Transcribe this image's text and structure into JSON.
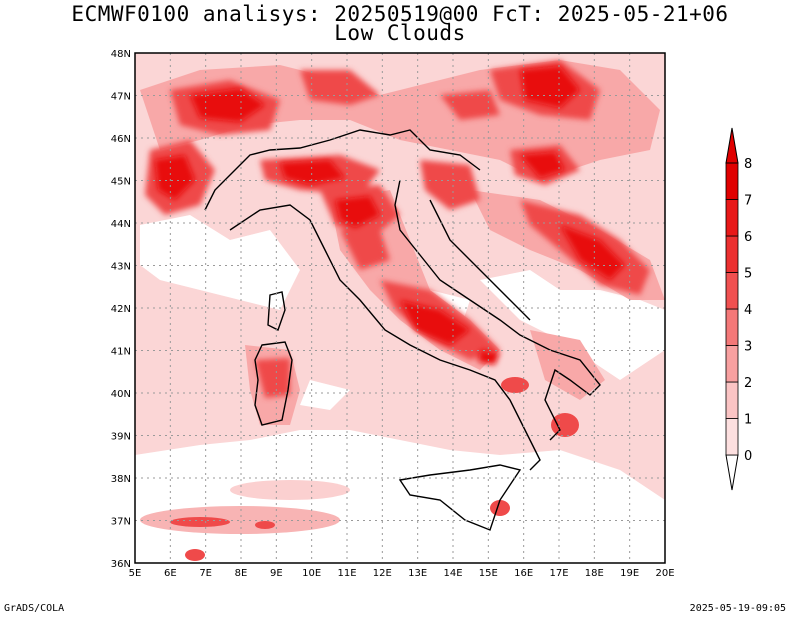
{
  "title_line1": "ECMWF0100 analisys: 20250519@00 FcT: 2025-05-21+06",
  "title_line2": "Low Clouds",
  "footer_left": "GrADS/COLA",
  "footer_right": "2025-05-19-09:05",
  "map": {
    "lon_range": [
      5,
      20
    ],
    "lat_range": [
      36,
      48
    ],
    "lon_labels": [
      "5E",
      "6E",
      "7E",
      "8E",
      "9E",
      "10E",
      "11E",
      "12E",
      "13E",
      "14E",
      "15E",
      "16E",
      "17E",
      "18E",
      "19E",
      "20E"
    ],
    "lat_labels": [
      "36N",
      "37N",
      "38N",
      "39N",
      "40N",
      "41N",
      "42N",
      "43N",
      "44N",
      "45N",
      "46N",
      "47N",
      "48N"
    ],
    "grid": true
  },
  "colorbar": {
    "labels": [
      "0",
      "1",
      "2",
      "3",
      "4",
      "5",
      "6",
      "7",
      "8"
    ],
    "colors": [
      "#ffffff",
      "#fde0e0",
      "#fbc4c4",
      "#f8a0a0",
      "#f47878",
      "#f05050",
      "#ec3030",
      "#e81818",
      "#e00000"
    ]
  }
}
